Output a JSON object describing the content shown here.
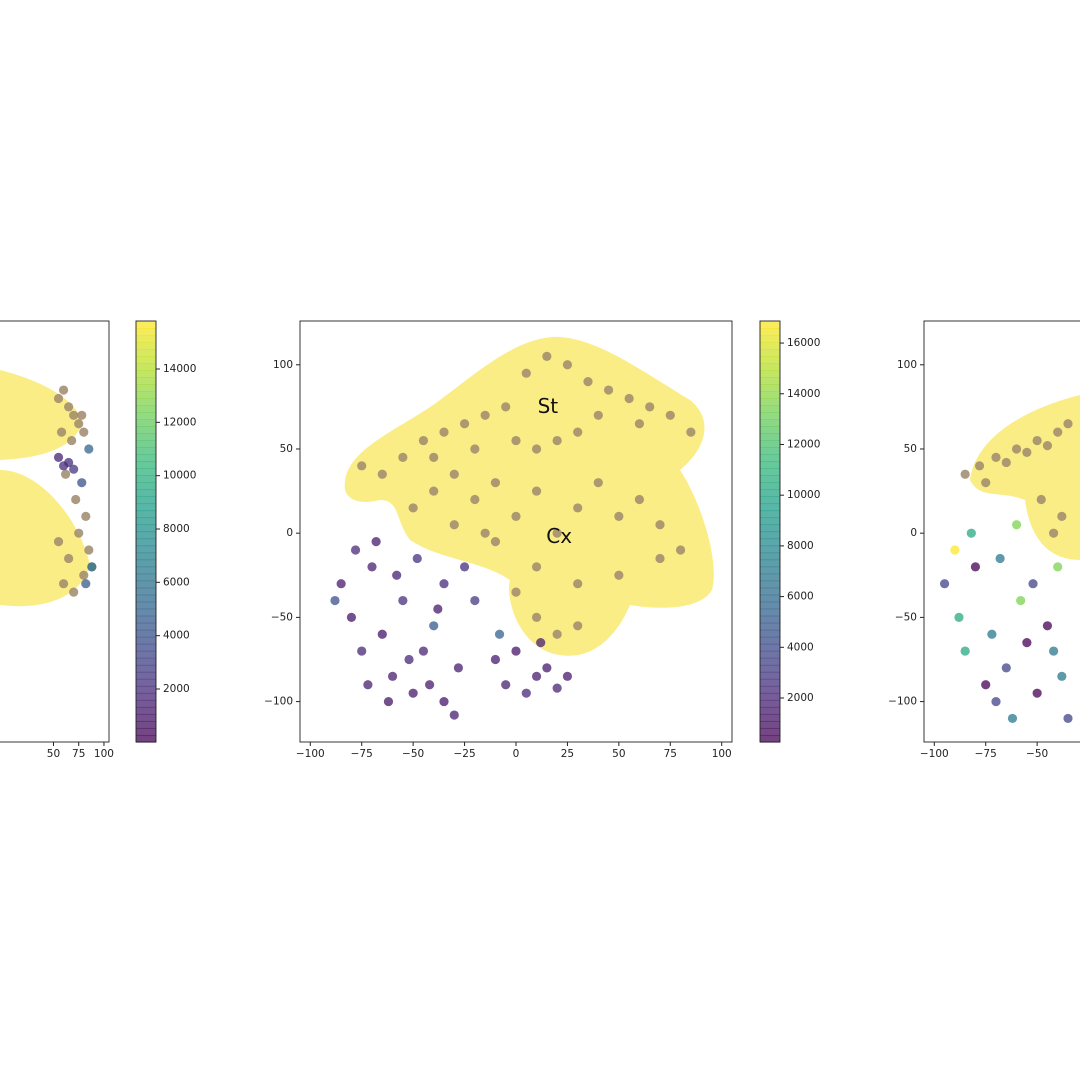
{
  "chart_data": [
    {
      "type": "scatter",
      "xlim": [
        -323,
        105
      ],
      "ylim": [
        -124,
        126
      ],
      "xticks": [
        50,
        75,
        100
      ],
      "series": [
        {
          "color": "#9e8a6c",
          "x": [
            55,
            60,
            65,
            70,
            75,
            80,
            58,
            68,
            78,
            62,
            72,
            82,
            55,
            65,
            75,
            85,
            60,
            70,
            80,
            88
          ],
          "y": [
            80,
            85,
            75,
            70,
            65,
            60,
            60,
            55,
            70,
            35,
            20,
            10,
            -5,
            -15,
            0,
            -10,
            -30,
            -35,
            -25,
            -20
          ]
        },
        {
          "cmap": "viridis",
          "x": [
            55,
            60,
            65,
            70,
            78,
            85,
            88,
            82
          ],
          "y": [
            45,
            40,
            42,
            38,
            30,
            50,
            -20,
            -30
          ],
          "c": [
            1500,
            1800,
            2000,
            2500,
            4000,
            5000,
            6000,
            4500
          ]
        }
      ],
      "colorbar": {
        "clim": [
          13,
          15800
        ],
        "ticks": [
          2000,
          4000,
          6000,
          8000,
          10000,
          12000,
          14000
        ]
      }
    },
    {
      "type": "scatter",
      "xlim": [
        -105,
        105
      ],
      "ylim": [
        -124,
        126
      ],
      "xticks": [
        {
          "value": -100,
          "label": "−100"
        },
        {
          "value": -75,
          "label": "−75"
        },
        {
          "value": -50,
          "label": "−50"
        },
        {
          "value": -25,
          "label": "−25"
        },
        0,
        25,
        50,
        75,
        100
      ],
      "yticks": [
        {
          "value": -100,
          "label": "−100"
        },
        {
          "value": -50,
          "label": "−50"
        },
        0,
        50,
        100
      ],
      "series": [
        {
          "cmap": "viridis",
          "x": [
            -85,
            -80,
            -75,
            -70,
            -65,
            -60,
            -55,
            -50,
            -45,
            -40,
            -35,
            -30,
            -78,
            -68,
            -58,
            -48,
            -38,
            -28,
            -62,
            -52,
            -42,
            -72,
            -88,
            -35,
            -10,
            -5,
            0,
            5,
            10,
            15,
            20,
            25,
            -8,
            12,
            -20,
            -25
          ],
          "y": [
            -30,
            -50,
            -70,
            -20,
            -60,
            -85,
            -40,
            -95,
            -70,
            -55,
            -100,
            -108,
            -10,
            -5,
            -25,
            -15,
            -45,
            -80,
            -100,
            -75,
            -90,
            -90,
            -40,
            -30,
            -75,
            -90,
            -70,
            -95,
            -85,
            -80,
            -92,
            -85,
            -60,
            -65,
            -40,
            -20
          ],
          "c": [
            1500,
            1300,
            2000,
            1800,
            1200,
            1600,
            2500,
            1400,
            1900,
            5000,
            1300,
            1700,
            2200,
            1500,
            1800,
            2600,
            1400,
            1600,
            1200,
            2000,
            1500,
            1700,
            4500,
            2300,
            1500,
            1800,
            1300,
            2100,
            1600,
            1400,
            1900,
            1500,
            5500,
            1700,
            3000,
            2400
          ]
        },
        {
          "color": "#9e8a6c",
          "x": [
            -75,
            -65,
            -55,
            -45,
            -35,
            -25,
            -15,
            -5,
            5,
            15,
            25,
            35,
            45,
            55,
            65,
            75,
            85,
            10,
            20,
            30,
            -40,
            -20,
            0,
            40,
            60,
            -50,
            -40,
            -30,
            -20,
            -10,
            0,
            10,
            20,
            30,
            40,
            50,
            60,
            70,
            80,
            -30,
            -10,
            10,
            30,
            50,
            70,
            10,
            20,
            30,
            0,
            -15
          ],
          "y": [
            40,
            35,
            45,
            55,
            60,
            65,
            70,
            75,
            95,
            105,
            100,
            90,
            85,
            80,
            75,
            70,
            60,
            50,
            55,
            60,
            45,
            50,
            55,
            70,
            65,
            15,
            25,
            35,
            20,
            30,
            10,
            25,
            0,
            15,
            30,
            10,
            20,
            5,
            -10,
            5,
            -5,
            -20,
            -30,
            -25,
            -15,
            -50,
            -60,
            -55,
            -35,
            0
          ]
        }
      ],
      "annotations": [
        {
          "text": "St",
          "x": 15.5,
          "y": 74.5
        },
        {
          "text": "Cx",
          "x": 21,
          "y": -2.7
        }
      ],
      "colorbar": {
        "clim": [
          265,
          16870
        ],
        "ticks": [
          2000,
          4000,
          6000,
          8000,
          10000,
          12000,
          14000,
          16000
        ]
      }
    },
    {
      "type": "scatter",
      "xlim": [
        -105,
        105
      ],
      "ylim": [
        -124,
        126
      ],
      "xticks": [
        {
          "value": -100,
          "label": "−100"
        },
        {
          "value": -75,
          "label": "−75"
        },
        {
          "value": -50,
          "label": "−50"
        }
      ],
      "yticks": [
        {
          "value": -100,
          "label": "−100"
        },
        {
          "value": -50,
          "label": "−50"
        },
        0,
        50,
        100
      ],
      "series": [
        {
          "cmap": "viridis",
          "x": [
            -95,
            -88,
            -80,
            -72,
            -65,
            -58,
            -50,
            -42,
            -35,
            -90,
            -82,
            -75,
            -68,
            -60,
            -52,
            -45,
            -38,
            -85,
            -70,
            -55,
            -40,
            -62
          ],
          "y": [
            -30,
            -50,
            -20,
            -60,
            -80,
            -40,
            -95,
            -70,
            -110,
            -10,
            0,
            -90,
            -15,
            5,
            -30,
            -55,
            -85,
            -70,
            -100,
            -65,
            -20,
            -110
          ],
          "c": [
            1100,
            1300,
            1000,
            1200,
            1100,
            1400,
            1000,
            1200,
            1100,
            1500,
            1300,
            1000,
            1200,
            1400,
            1100,
            1000,
            1200,
            1300,
            1100,
            1000,
            1400,
            1200
          ]
        },
        {
          "color": "#9e8a6c",
          "x": [
            -85,
            -78,
            -70,
            -60,
            -50,
            -40,
            -35,
            -75,
            -65,
            -55,
            -45,
            -38,
            -48,
            -42
          ],
          "y": [
            35,
            40,
            45,
            50,
            55,
            60,
            65,
            30,
            42,
            48,
            52,
            10,
            20,
            0
          ]
        }
      ]
    }
  ]
}
